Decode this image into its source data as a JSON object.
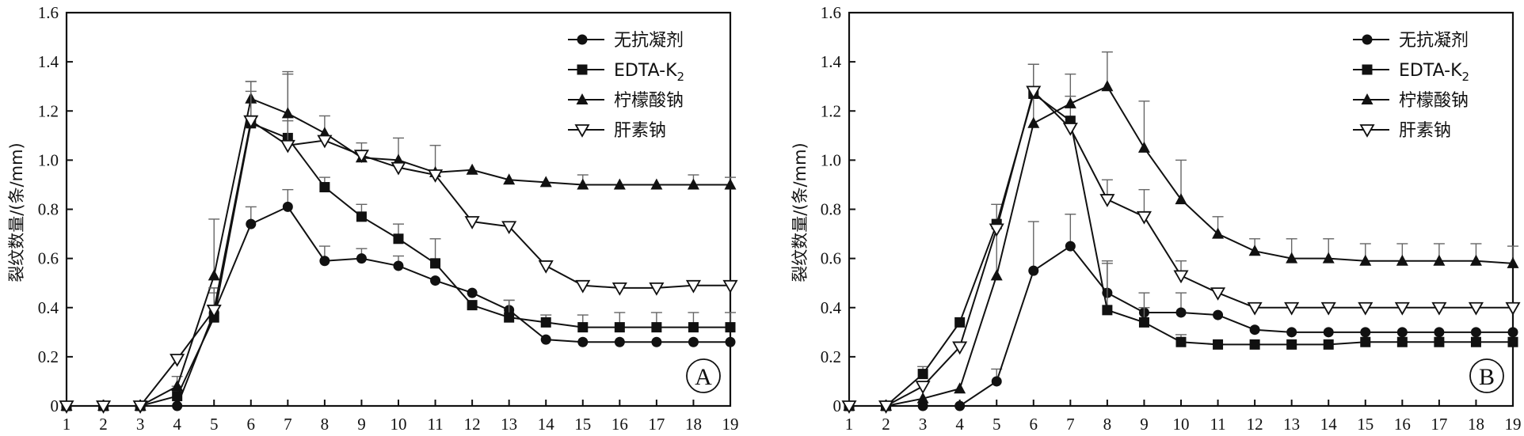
{
  "chart_data": [
    {
      "type": "line",
      "panel_label": "A",
      "ylabel": "裂纹数量/(条/mm)",
      "xlabel": "",
      "x": [
        1,
        2,
        3,
        4,
        5,
        6,
        7,
        8,
        9,
        10,
        11,
        12,
        13,
        14,
        15,
        16,
        17,
        18,
        19
      ],
      "xlim": [
        1,
        19
      ],
      "ylim": [
        0,
        1.6
      ],
      "yticks": [
        "0",
        "0.2",
        "0.4",
        "0.6",
        "0.8",
        "1.0",
        "1.2",
        "1.4",
        "1.6"
      ],
      "grid": false,
      "legend_position": "top-right",
      "series": [
        {
          "name": "无抗凝剂",
          "marker": "circle",
          "values": [
            0,
            0,
            0,
            0,
            0.38,
            0.74,
            0.81,
            0.59,
            0.6,
            0.57,
            0.51,
            0.46,
            0.39,
            0.27,
            0.26,
            0.26,
            0.26,
            0.26,
            0.26
          ],
          "errors": [
            0,
            0,
            0,
            0,
            0.1,
            0.07,
            0.07,
            0.06,
            0.04,
            0.04,
            0,
            0,
            0.04,
            0,
            0,
            0,
            0,
            0,
            0
          ]
        },
        {
          "name": "EDTA-K2",
          "label_main": "EDTA-K",
          "label_sub": "2",
          "marker": "square",
          "values": [
            0,
            0,
            0,
            0.04,
            0.36,
            1.15,
            1.09,
            0.89,
            0.77,
            0.68,
            0.58,
            0.41,
            0.36,
            0.34,
            0.32,
            0.32,
            0.32,
            0.32,
            0.32
          ],
          "errors": [
            0,
            0,
            0,
            0.04,
            0.1,
            0.13,
            0.26,
            0.04,
            0.05,
            0.06,
            0.1,
            0,
            0.07,
            0.03,
            0.05,
            0.06,
            0.06,
            0.06,
            0.06
          ]
        },
        {
          "name": "柠檬酸钠",
          "marker": "triangle-up",
          "values": [
            0,
            0,
            0,
            0.08,
            0.53,
            1.25,
            1.19,
            1.11,
            1.01,
            1,
            0.95,
            0.96,
            0.92,
            0.91,
            0.9,
            0.9,
            0.9,
            0.9,
            0.9
          ],
          "errors": [
            0,
            0,
            0,
            0.04,
            0.23,
            0.07,
            0.17,
            0.07,
            0.06,
            0.09,
            0.11,
            0,
            0,
            0,
            0.04,
            0,
            0,
            0.04,
            0.03
          ]
        },
        {
          "name": "肝素钠",
          "marker": "triangle-down-open",
          "values": [
            0,
            0,
            0,
            0.19,
            0.39,
            1.16,
            1.06,
            1.08,
            1.02,
            0.97,
            0.94,
            0.75,
            0.73,
            0.57,
            0.49,
            0.48,
            0.48,
            0.49,
            0.49
          ],
          "errors": [
            0,
            0,
            0,
            0,
            0.09,
            0.16,
            0.1,
            0,
            0,
            0,
            0,
            0,
            0,
            0,
            0,
            0,
            0,
            0,
            0
          ]
        }
      ]
    },
    {
      "type": "line",
      "panel_label": "B",
      "ylabel": "裂纹数量/(条/mm)",
      "xlabel": "",
      "x": [
        1,
        2,
        3,
        4,
        5,
        6,
        7,
        8,
        9,
        10,
        11,
        12,
        13,
        14,
        15,
        16,
        17,
        18,
        19
      ],
      "xlim": [
        1,
        19
      ],
      "ylim": [
        0,
        1.6
      ],
      "yticks": [
        "0",
        "0.2",
        "0.4",
        "0.6",
        "0.8",
        "1.0",
        "1.2",
        "1.4",
        "1.6"
      ],
      "grid": false,
      "legend_position": "top-right",
      "series": [
        {
          "name": "无抗凝剂",
          "marker": "circle",
          "values": [
            0,
            0,
            0,
            0,
            0.1,
            0.55,
            0.65,
            0.46,
            0.38,
            0.38,
            0.37,
            0.31,
            0.3,
            0.3,
            0.3,
            0.3,
            0.3,
            0.3,
            0.3
          ],
          "errors": [
            0,
            0,
            0,
            0,
            0.05,
            0.2,
            0.13,
            0.12,
            0.08,
            0.08,
            0,
            0,
            0,
            0,
            0,
            0,
            0,
            0,
            0
          ]
        },
        {
          "name": "EDTA-K2",
          "label_main": "EDTA-K",
          "label_sub": "2",
          "marker": "square",
          "values": [
            0,
            0,
            0.13,
            0.34,
            0.74,
            1.27,
            1.16,
            0.39,
            0.34,
            0.26,
            0.25,
            0.25,
            0.25,
            0.25,
            0.26,
            0.26,
            0.26,
            0.26,
            0.26
          ],
          "errors": [
            0,
            0,
            0.03,
            0,
            0.08,
            0.12,
            0.1,
            0.2,
            0.06,
            0.03,
            0,
            0,
            0,
            0,
            0,
            0,
            0,
            0,
            0
          ]
        },
        {
          "name": "柠檬酸钠",
          "marker": "triangle-up",
          "values": [
            0,
            0,
            0.03,
            0.07,
            0.53,
            1.15,
            1.23,
            1.3,
            1.05,
            0.84,
            0.7,
            0.63,
            0.6,
            0.6,
            0.59,
            0.59,
            0.59,
            0.59,
            0.58
          ],
          "errors": [
            0,
            0,
            0,
            0,
            0.2,
            0.24,
            0.12,
            0.14,
            0.19,
            0.16,
            0.07,
            0.05,
            0.08,
            0.08,
            0.07,
            0.07,
            0.07,
            0.07,
            0.07
          ]
        },
        {
          "name": "肝素钠",
          "marker": "triangle-down-open",
          "values": [
            0,
            0,
            0.08,
            0.24,
            0.72,
            1.28,
            1.13,
            0.84,
            0.77,
            0.53,
            0.46,
            0.4,
            0.4,
            0.4,
            0.4,
            0.4,
            0.4,
            0.4,
            0.4
          ],
          "errors": [
            0,
            0,
            0,
            0,
            0,
            0,
            0,
            0.08,
            0.11,
            0.06,
            0,
            0,
            0,
            0,
            0,
            0,
            0,
            0,
            0
          ]
        }
      ]
    }
  ]
}
